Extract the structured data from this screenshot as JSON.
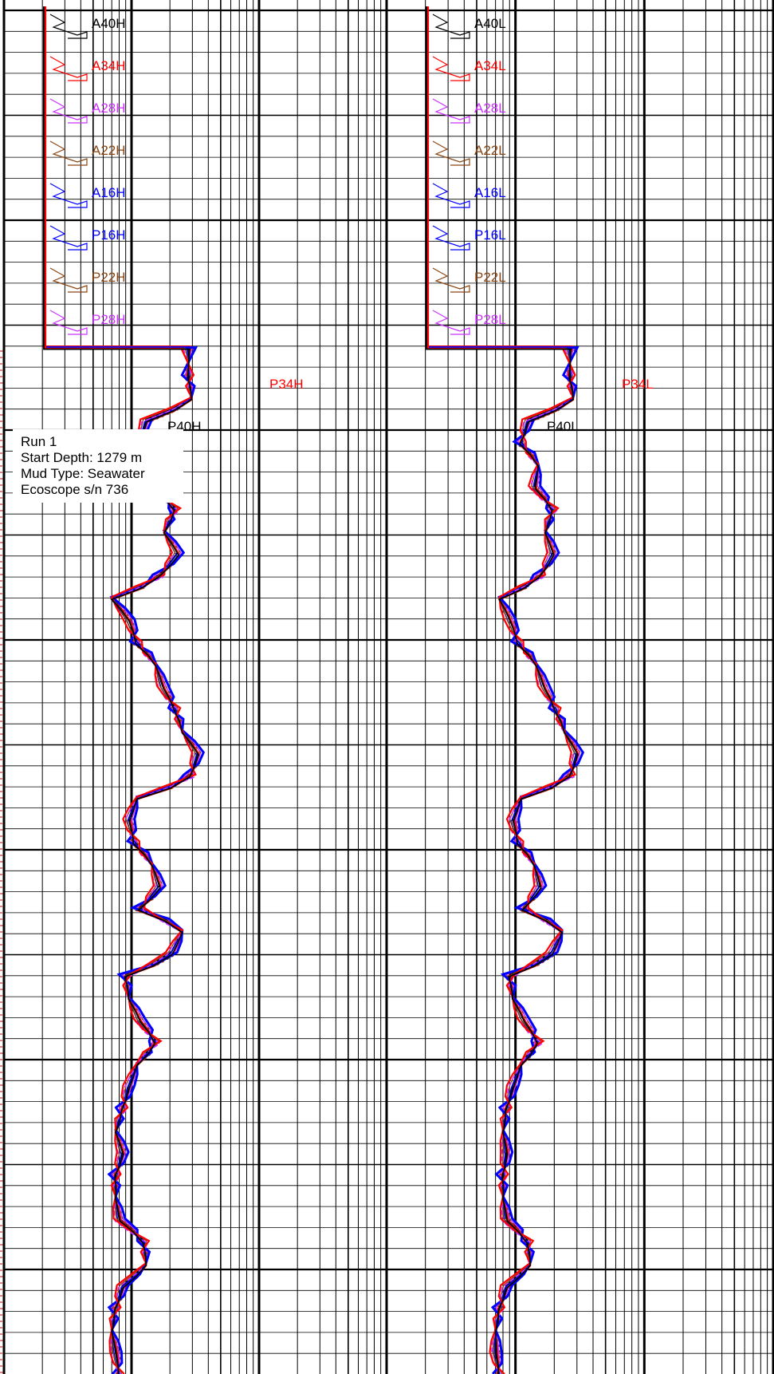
{
  "info_box": {
    "run": "Run 1",
    "start_depth": "Start Depth: 1279 m",
    "mud_type": "Mud Type: Seawater",
    "tool": "Ecoscope s/n 736"
  },
  "chart_data": [
    {
      "type": "line",
      "title": "",
      "scale": "logarithmic",
      "grid": true,
      "curves": [
        {
          "name": "A40H",
          "color": "#000000"
        },
        {
          "name": "A34H",
          "color": "#ff0000"
        },
        {
          "name": "A28H",
          "color": "#cc33ff"
        },
        {
          "name": "A22H",
          "color": "#8b4513"
        },
        {
          "name": "A16H",
          "color": "#0000ff"
        },
        {
          "name": "P16H",
          "color": "#0000ff"
        },
        {
          "name": "P22H",
          "color": "#8b4513"
        },
        {
          "name": "P28H",
          "color": "#cc33ff"
        },
        {
          "name": "P34H",
          "color": "#ff0000"
        },
        {
          "name": "P40H",
          "color": "#000000"
        }
      ],
      "trace_values": [
        5.6,
        5.9,
        2.6,
        2.3,
        3.1,
        2.9,
        4.4,
        3.6,
        4.6,
        3.3,
        1.4,
        1.9,
        2.2,
        3.1,
        3.5,
        4.4,
        5.0,
        6.6,
        5.8,
        2.2,
        1.9,
        2.1,
        2.9,
        3.3,
        2.3,
        5.0,
        4.1,
        1.8,
        1.9,
        2.3,
        3.1,
        2.2,
        1.9,
        1.7,
        1.5,
        1.7,
        1.5,
        1.5,
        1.6,
        2.5,
        2.6,
        1.7,
        1.5,
        1.4,
        1.5,
        1.6
      ]
    },
    {
      "type": "line",
      "title": "",
      "scale": "logarithmic",
      "grid": true,
      "curves": [
        {
          "name": "A40L",
          "color": "#000000"
        },
        {
          "name": "A34L",
          "color": "#ff0000"
        },
        {
          "name": "A28L",
          "color": "#cc33ff"
        },
        {
          "name": "A22L",
          "color": "#8b4513"
        },
        {
          "name": "A16L",
          "color": "#0000ff"
        },
        {
          "name": "P16L",
          "color": "#0000ff"
        },
        {
          "name": "P22L",
          "color": "#8b4513"
        },
        {
          "name": "P28L",
          "color": "#cc33ff"
        },
        {
          "name": "P34L",
          "color": "#ff0000"
        },
        {
          "name": "P40L",
          "color": "#000000"
        }
      ],
      "trace_values": [
        5.3,
        5.6,
        2.5,
        2.2,
        3.0,
        2.8,
        3.9,
        3.4,
        3.9,
        3.1,
        1.5,
        1.8,
        2.1,
        2.9,
        3.3,
        4.1,
        4.8,
        6.0,
        5.3,
        2.2,
        1.9,
        2.1,
        2.8,
        3.1,
        2.3,
        4.6,
        3.8,
        1.8,
        1.9,
        2.3,
        3.0,
        2.2,
        1.9,
        1.7,
        1.6,
        1.7,
        1.6,
        1.6,
        1.7,
        2.5,
        2.6,
        1.7,
        1.5,
        1.4,
        1.4,
        1.5
      ]
    }
  ]
}
